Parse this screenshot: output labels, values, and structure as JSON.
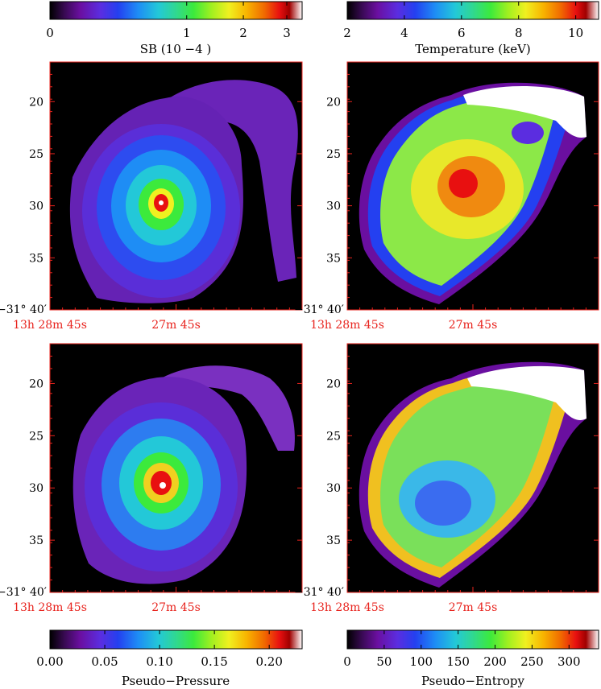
{
  "chart_data": [
    {
      "type": "heatmap",
      "panel": "surface-brightness",
      "colorbar": {
        "position": "top",
        "label": "SB (10 −4 )",
        "ticks": [
          "0",
          "1",
          "2",
          "3"
        ],
        "tick_values": [
          0,
          1,
          2,
          3
        ],
        "vmin": 0,
        "vmax": 3.4,
        "scale": "sqrt"
      },
      "y_ticks": [
        "20",
        "25",
        "30",
        "35"
      ],
      "y_corner": "−31° 40′",
      "x_ticks": [
        "13h 28m 45s",
        "27m 45s"
      ],
      "features": {
        "peak": "white core",
        "blob": "teardrop cluster with northern tail"
      }
    },
    {
      "type": "heatmap",
      "panel": "temperature",
      "colorbar": {
        "position": "top",
        "label": "Temperature (keV)",
        "ticks": [
          "2",
          "4",
          "6",
          "8",
          "10"
        ],
        "tick_values": [
          2,
          4,
          6,
          8,
          10
        ],
        "vmin": 2,
        "vmax": 10.8,
        "scale": "linear"
      },
      "y_ticks": [
        "20",
        "25",
        "30",
        "35"
      ],
      "y_corner": "−31° 40′",
      "x_ticks": [
        "13h 28m 45s",
        "27m 45s"
      ]
    },
    {
      "type": "heatmap",
      "panel": "pseudo-pressure",
      "colorbar": {
        "position": "bottom",
        "label": "Pseudo−Pressure",
        "ticks": [
          "0.00",
          "0.05",
          "0.10",
          "0.15",
          "0.20"
        ],
        "tick_values": [
          0,
          0.05,
          0.1,
          0.15,
          0.2
        ],
        "vmin": 0,
        "vmax": 0.23,
        "scale": "linear"
      },
      "y_ticks": [
        "20",
        "25",
        "30",
        "35"
      ],
      "y_corner": "−31° 40′",
      "x_ticks": [
        "13h 28m 45s",
        "27m 45s"
      ]
    },
    {
      "type": "heatmap",
      "panel": "pseudo-entropy",
      "colorbar": {
        "position": "bottom",
        "label": "Pseudo−Entropy",
        "ticks": [
          "0",
          "50",
          "100",
          "150",
          "200",
          "250",
          "300"
        ],
        "tick_values": [
          0,
          50,
          100,
          150,
          200,
          250,
          300
        ],
        "vmin": 0,
        "vmax": 340,
        "scale": "linear"
      },
      "y_ticks": [
        "20",
        "25",
        "30",
        "35"
      ],
      "y_corner": "−31° 40′",
      "x_ticks": [
        "13h 28m 45s",
        "27m 45s"
      ]
    }
  ],
  "colors": {
    "axis": "#e8231d",
    "colormap": [
      "#000000",
      "#3a0a55",
      "#6a0fa0",
      "#5b2de0",
      "#2440f0",
      "#1e8df5",
      "#23c8d8",
      "#30d890",
      "#3cea3c",
      "#a0f020",
      "#f0f020",
      "#f8b400",
      "#f06a00",
      "#e81010",
      "#a00000",
      "#ffffff"
    ]
  }
}
